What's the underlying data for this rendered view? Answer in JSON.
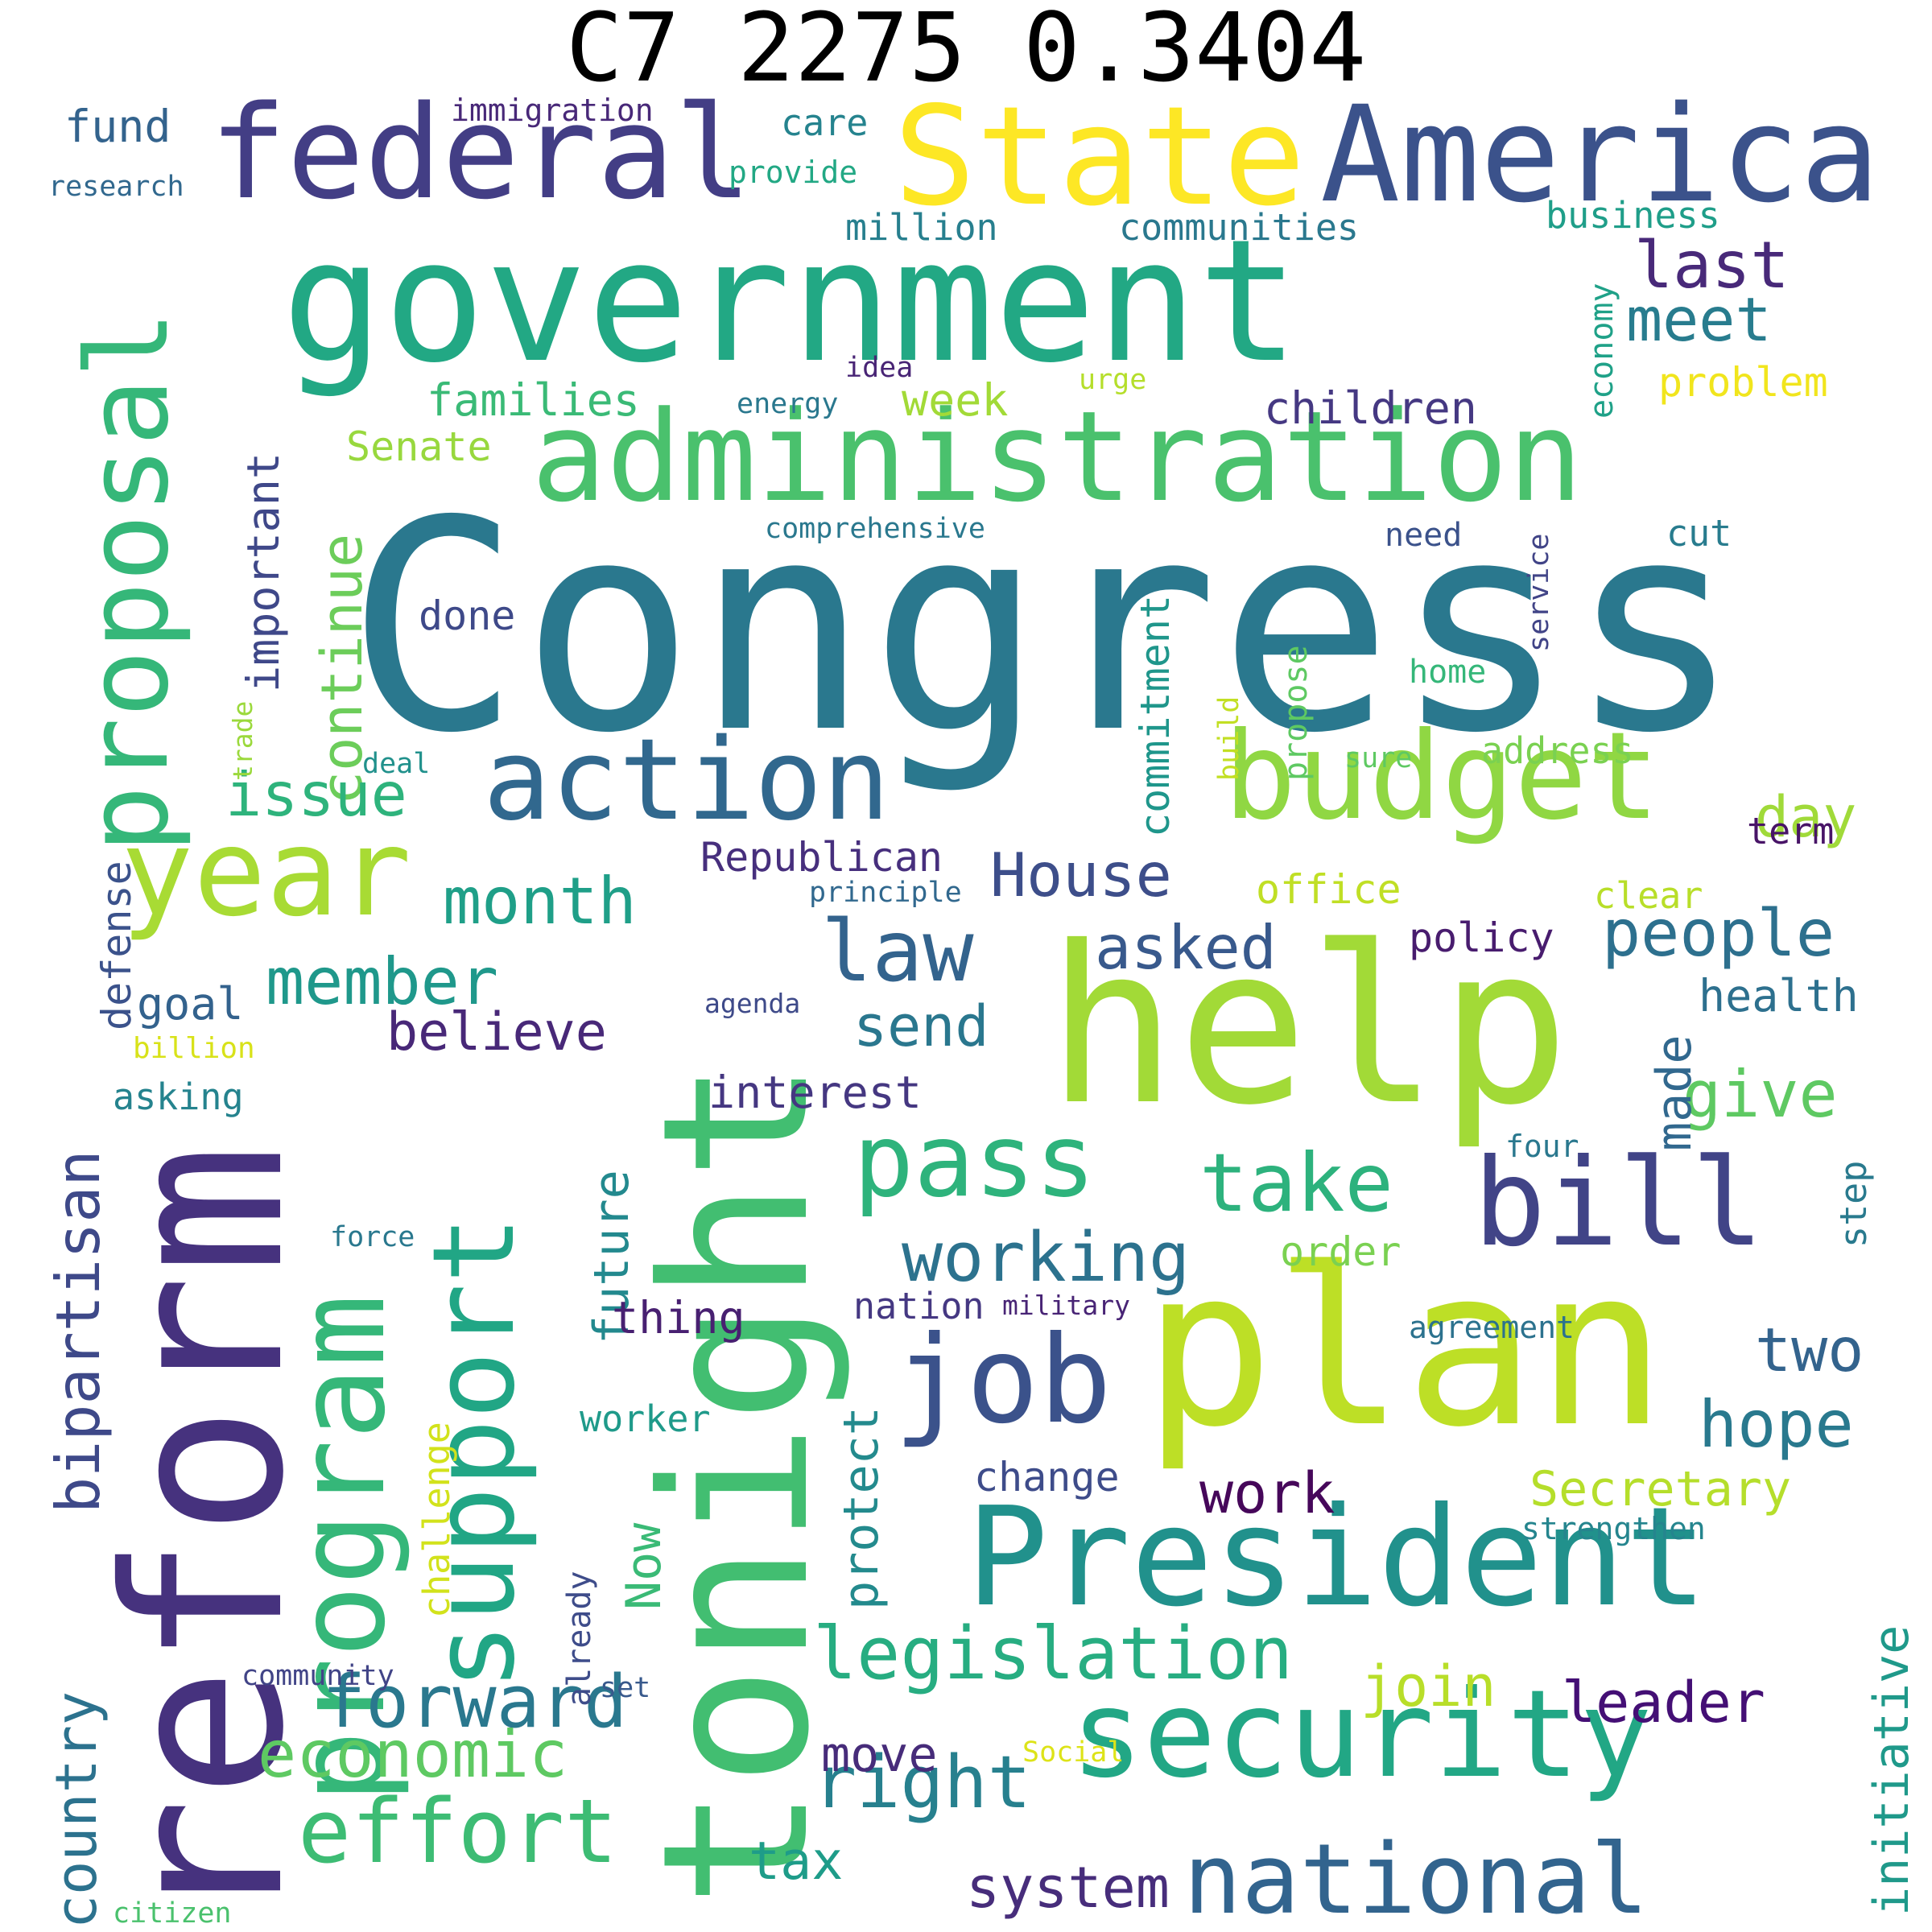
{
  "title": "C7 2275 0.3404",
  "words": [
    {
      "text": "Congress",
      "color": "#2a788e",
      "vertical": false
    },
    {
      "text": "tonight",
      "color": "#42be71",
      "vertical": true
    },
    {
      "text": "reform",
      "color": "#46327e",
      "vertical": true
    },
    {
      "text": "government",
      "color": "#22a884",
      "vertical": false
    },
    {
      "text": "help",
      "color": "#a2da37",
      "vertical": false
    },
    {
      "text": "plan",
      "color": "#bddf26",
      "vertical": false
    },
    {
      "text": "administration",
      "color": "#4ac16d",
      "vertical": false
    },
    {
      "text": "President",
      "color": "#21918c",
      "vertical": false
    },
    {
      "text": "security",
      "color": "#22a785",
      "vertical": false
    },
    {
      "text": "State",
      "color": "#fde725",
      "vertical": false
    },
    {
      "text": "America",
      "color": "#3b528b",
      "vertical": false
    },
    {
      "text": "federal",
      "color": "#433e85",
      "vertical": false
    },
    {
      "text": "budget",
      "color": "#90d743",
      "vertical": false
    },
    {
      "text": "program",
      "color": "#35b779",
      "vertical": true
    },
    {
      "text": "support",
      "color": "#21a685",
      "vertical": true
    },
    {
      "text": "proposal",
      "color": "#35b779",
      "vertical": true
    },
    {
      "text": "year",
      "color": "#a8db34",
      "vertical": false
    },
    {
      "text": "bill",
      "color": "#414487",
      "vertical": false
    },
    {
      "text": "job",
      "color": "#3b528b",
      "vertical": false
    },
    {
      "text": "action",
      "color": "#31688e",
      "vertical": false
    },
    {
      "text": "national",
      "color": "#32648e",
      "vertical": false
    },
    {
      "text": "pass",
      "color": "#2eb37c",
      "vertical": false
    },
    {
      "text": "bipartisan",
      "color": "#3e4989",
      "vertical": true
    },
    {
      "text": "effort",
      "color": "#3dbc74",
      "vertical": false
    },
    {
      "text": "law",
      "color": "#33638d",
      "vertical": false
    },
    {
      "text": "legislation",
      "color": "#27ad81",
      "vertical": false
    },
    {
      "text": "working",
      "color": "#2c728e",
      "vertical": false
    },
    {
      "text": "take",
      "color": "#2db27d",
      "vertical": false
    },
    {
      "text": "forward",
      "color": "#2a788e",
      "vertical": false
    },
    {
      "text": "right",
      "color": "#27808e",
      "vertical": false
    },
    {
      "text": "people",
      "color": "#2d708e",
      "vertical": false
    },
    {
      "text": "House",
      "color": "#3d4e8a",
      "vertical": false
    },
    {
      "text": "month",
      "color": "#1f9f88",
      "vertical": false
    },
    {
      "text": "member",
      "color": "#1f988b",
      "vertical": false
    },
    {
      "text": "economic",
      "color": "#5ec962",
      "vertical": false
    },
    {
      "text": "hope",
      "color": "#29798e",
      "vertical": false
    },
    {
      "text": "Secretary",
      "color": "#b5de2b",
      "vertical": false
    },
    {
      "text": "country",
      "color": "#2c728e",
      "vertical": true
    },
    {
      "text": "continue",
      "color": "#6ccd5a",
      "vertical": true
    },
    {
      "text": "important",
      "color": "#3f4889",
      "vertical": true
    },
    {
      "text": "future",
      "color": "#23898e",
      "vertical": true
    },
    {
      "text": "initiative",
      "color": "#1f998a",
      "vertical": true
    },
    {
      "text": "give",
      "color": "#5ec962",
      "vertical": false
    },
    {
      "text": "system",
      "color": "#472d7b",
      "vertical": false
    },
    {
      "text": "two",
      "color": "#33638d",
      "vertical": false
    },
    {
      "text": "leader",
      "color": "#440f75",
      "vertical": false
    },
    {
      "text": "join",
      "color": "#b8de29",
      "vertical": false
    },
    {
      "text": "send",
      "color": "#2a778e",
      "vertical": false
    },
    {
      "text": "asked",
      "color": "#38598c",
      "vertical": false
    },
    {
      "text": "issue",
      "color": "#2eb37c",
      "vertical": false
    },
    {
      "text": "work",
      "color": "#46075a",
      "vertical": false
    },
    {
      "text": "believe",
      "color": "#482878",
      "vertical": false
    },
    {
      "text": "protect",
      "color": "#238a8d",
      "vertical": true
    },
    {
      "text": "last",
      "color": "#482979",
      "vertical": false
    },
    {
      "text": "meet",
      "color": "#287c8e",
      "vertical": false
    },
    {
      "text": "tax",
      "color": "#1e9c89",
      "vertical": false
    },
    {
      "text": "day",
      "color": "#a0da39",
      "vertical": false
    },
    {
      "text": "made",
      "color": "#31688e",
      "vertical": true
    },
    {
      "text": "Now",
      "color": "#3aba76",
      "vertical": true
    },
    {
      "text": "move",
      "color": "#472c7a",
      "vertical": false
    },
    {
      "text": "Republican",
      "color": "#472f7d",
      "vertical": false
    },
    {
      "text": "commitment",
      "color": "#1f968b",
      "vertical": true
    },
    {
      "text": "change",
      "color": "#3e4c8a",
      "vertical": false
    },
    {
      "text": "thing",
      "color": "#482071",
      "vertical": false
    },
    {
      "text": "interest",
      "color": "#453781",
      "vertical": false
    },
    {
      "text": "health",
      "color": "#2d708e",
      "vertical": false
    },
    {
      "text": "defense",
      "color": "#3b528b",
      "vertical": true
    },
    {
      "text": "families",
      "color": "#3aba76",
      "vertical": false
    },
    {
      "text": "children",
      "color": "#453882",
      "vertical": false
    },
    {
      "text": "Senate",
      "color": "#98d83e",
      "vertical": false
    },
    {
      "text": "done",
      "color": "#3e4989",
      "vertical": false
    },
    {
      "text": "policy",
      "color": "#481c6e",
      "vertical": false
    },
    {
      "text": "goal",
      "color": "#33628d",
      "vertical": false
    },
    {
      "text": "office",
      "color": "#c0df25",
      "vertical": false
    },
    {
      "text": "order",
      "color": "#7ad151",
      "vertical": false
    },
    {
      "text": "worker",
      "color": "#1f9a8a",
      "vertical": false
    },
    {
      "text": "challenge",
      "color": "#d2e21b",
      "vertical": true
    },
    {
      "text": "nation",
      "color": "#453882",
      "vertical": false
    },
    {
      "text": "step",
      "color": "#297a8e",
      "vertical": true
    },
    {
      "text": "week",
      "color": "#a2da37",
      "vertical": false
    },
    {
      "text": "fund",
      "color": "#33638d",
      "vertical": false
    },
    {
      "text": "problem",
      "color": "#f1e51d",
      "vertical": false
    },
    {
      "text": "address",
      "color": "#7ad151",
      "vertical": false
    },
    {
      "text": "strengthen",
      "color": "#25858e",
      "vertical": false
    },
    {
      "text": "asking",
      "color": "#25838e",
      "vertical": false
    },
    {
      "text": "term",
      "color": "#481467",
      "vertical": false
    },
    {
      "text": "economy",
      "color": "#1fa188",
      "vertical": true
    },
    {
      "text": "already",
      "color": "#3e4c8a",
      "vertical": true
    },
    {
      "text": "clear",
      "color": "#b8de29",
      "vertical": false
    },
    {
      "text": "business",
      "color": "#1f9e89",
      "vertical": false
    },
    {
      "text": "million",
      "color": "#277f8e",
      "vertical": false
    },
    {
      "text": "communities",
      "color": "#2a788e",
      "vertical": false
    },
    {
      "text": "care",
      "color": "#25838e",
      "vertical": false
    },
    {
      "text": "propose",
      "color": "#5ec962",
      "vertical": true
    },
    {
      "text": "cut",
      "color": "#287c8e",
      "vertical": false
    },
    {
      "text": "need",
      "color": "#3b528b",
      "vertical": false
    },
    {
      "text": "immigration",
      "color": "#482878",
      "vertical": false
    },
    {
      "text": "billion",
      "color": "#d8e219",
      "vertical": false
    },
    {
      "text": "home",
      "color": "#35b779",
      "vertical": false
    },
    {
      "text": "research",
      "color": "#31688e",
      "vertical": false
    },
    {
      "text": "idea",
      "color": "#482475",
      "vertical": false
    },
    {
      "text": "provide",
      "color": "#22a884",
      "vertical": false
    },
    {
      "text": "agreement",
      "color": "#2c728e",
      "vertical": false
    },
    {
      "text": "comprehensive",
      "color": "#2a788e",
      "vertical": false
    },
    {
      "text": "community",
      "color": "#414487",
      "vertical": false
    },
    {
      "text": "principle",
      "color": "#31688e",
      "vertical": false
    },
    {
      "text": "four",
      "color": "#2a788e",
      "vertical": false
    },
    {
      "text": "trade",
      "color": "#9bd93c",
      "vertical": true
    },
    {
      "text": "urge",
      "color": "#b5de2b",
      "vertical": false
    },
    {
      "text": "service",
      "color": "#414487",
      "vertical": true
    },
    {
      "text": "deal",
      "color": "#21918c",
      "vertical": false
    },
    {
      "text": "build",
      "color": "#c2df23",
      "vertical": true
    },
    {
      "text": "sure",
      "color": "#5ec962",
      "vertical": false
    },
    {
      "text": "set",
      "color": "#38598c",
      "vertical": false
    },
    {
      "text": "Social",
      "color": "#dde318",
      "vertical": false
    },
    {
      "text": "energy",
      "color": "#2a788e",
      "vertical": false
    },
    {
      "text": "agenda",
      "color": "#3e4a89",
      "vertical": false
    },
    {
      "text": "force",
      "color": "#2a788e",
      "vertical": false
    },
    {
      "text": "military",
      "color": "#482475",
      "vertical": false
    },
    {
      "text": "citizen",
      "color": "#4ac16d",
      "vertical": false
    }
  ]
}
